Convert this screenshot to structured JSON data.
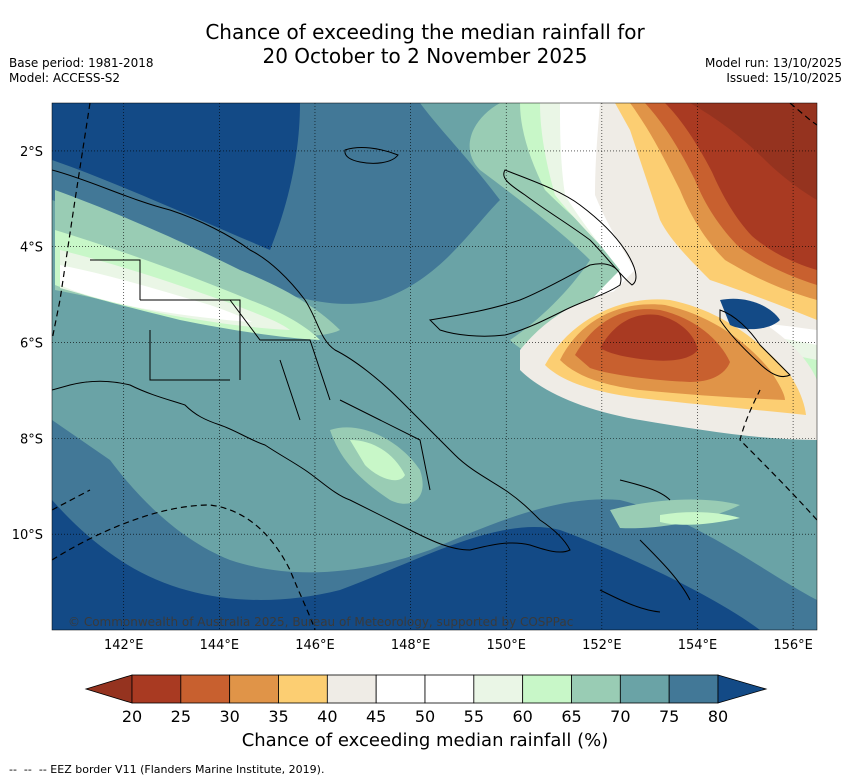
{
  "title": {
    "line1": "Chance of exceeding the median rainfall for",
    "line2": "20 October to 2 November 2025"
  },
  "meta_left": {
    "base_period": "Base period: 1981-2018",
    "model": "Model: ACCESS-S2"
  },
  "meta_right": {
    "model_run": "Model run: 13/10/2025",
    "issued": "Issued: 15/10/2025"
  },
  "map": {
    "lon_labels": [
      "142°E",
      "144°E",
      "146°E",
      "148°E",
      "150°E",
      "152°E",
      "154°E",
      "156°E"
    ],
    "lat_labels": [
      "2°S",
      "4°S",
      "6°S",
      "8°S",
      "10°S"
    ],
    "lon_range": [
      140.5,
      156.5
    ],
    "lat_range": [
      -12,
      -1
    ],
    "credit": "© Commonwealth of Australia 2025, Bureau of Meteorology, supported by COSPPac"
  },
  "colorbar": {
    "labels": [
      "20",
      "25",
      "30",
      "35",
      "40",
      "45",
      "50",
      "55",
      "60",
      "65",
      "70",
      "75",
      "80"
    ],
    "colors": [
      "#a93a22",
      "#c8602f",
      "#e09448",
      "#fcce72",
      "#efece6",
      "#ffffff",
      "#ffffff",
      "#eaf6e6",
      "#c8f7c8",
      "#99ccb4",
      "#6aa3a6",
      "#427897"
    ],
    "low_color": "#95331f",
    "high_color": "#134a86",
    "title": "Chance of exceeding median rainfall (%)"
  },
  "footer": {
    "legend": "-- EEZ border V11 (Flanders Marine Institute, 2019)."
  }
}
